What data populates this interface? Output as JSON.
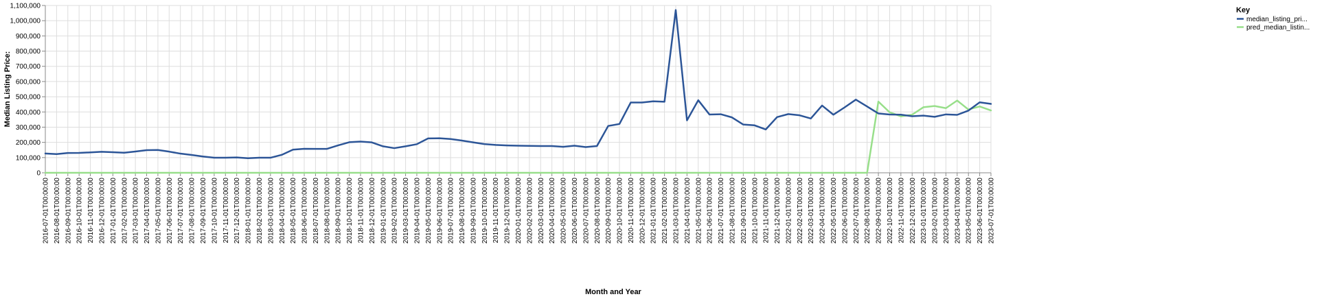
{
  "chart_data": {
    "type": "line",
    "xlabel": "Month and Year",
    "ylabel": "Median Listing Price:",
    "ylim": [
      0,
      1100000
    ],
    "yticks": [
      0,
      100000,
      200000,
      300000,
      400000,
      500000,
      600000,
      700000,
      800000,
      900000,
      1000000,
      1100000
    ],
    "ytick_labels": [
      "0",
      "100,000",
      "200,000",
      "300,000",
      "400,000",
      "500,000",
      "600,000",
      "700,000",
      "800,000",
      "900,000",
      "1,000,000",
      "1,100,000"
    ],
    "grid": true,
    "legend": {
      "title": "Key",
      "placement": "top-right"
    },
    "x": [
      "2016-07-01T00:00:00",
      "2016-08-01T00:00:00",
      "2016-09-01T00:00:00",
      "2016-10-01T00:00:00",
      "2016-11-01T00:00:00",
      "2016-12-01T00:00:00",
      "2017-01-01T00:00:00",
      "2017-02-01T00:00:00",
      "2017-03-01T00:00:00",
      "2017-04-01T00:00:00",
      "2017-05-01T00:00:00",
      "2017-06-01T00:00:00",
      "2017-07-01T00:00:00",
      "2017-08-01T00:00:00",
      "2017-09-01T00:00:00",
      "2017-10-01T00:00:00",
      "2017-11-01T00:00:00",
      "2017-12-01T00:00:00",
      "2018-01-01T00:00:00",
      "2018-02-01T00:00:00",
      "2018-03-01T00:00:00",
      "2018-04-01T00:00:00",
      "2018-05-01T00:00:00",
      "2018-06-01T00:00:00",
      "2018-07-01T00:00:00",
      "2018-08-01T00:00:00",
      "2018-09-01T00:00:00",
      "2018-10-01T00:00:00",
      "2018-11-01T00:00:00",
      "2018-12-01T00:00:00",
      "2019-01-01T00:00:00",
      "2019-02-01T00:00:00",
      "2019-03-01T00:00:00",
      "2019-04-01T00:00:00",
      "2019-05-01T00:00:00",
      "2019-06-01T00:00:00",
      "2019-07-01T00:00:00",
      "2019-08-01T00:00:00",
      "2019-09-01T00:00:00",
      "2019-10-01T00:00:00",
      "2019-11-01T00:00:00",
      "2019-12-01T00:00:00",
      "2020-01-01T00:00:00",
      "2020-02-01T00:00:00",
      "2020-03-01T00:00:00",
      "2020-04-01T00:00:00",
      "2020-05-01T00:00:00",
      "2020-06-01T00:00:00",
      "2020-07-01T00:00:00",
      "2020-08-01T00:00:00",
      "2020-09-01T00:00:00",
      "2020-10-01T00:00:00",
      "2020-11-01T00:00:00",
      "2020-12-01T00:00:00",
      "2021-01-01T00:00:00",
      "2021-02-01T00:00:00",
      "2021-03-01T00:00:00",
      "2021-04-01T00:00:00",
      "2021-05-01T00:00:00",
      "2021-06-01T00:00:00",
      "2021-07-01T00:00:00",
      "2021-08-01T00:00:00",
      "2021-09-01T00:00:00",
      "2021-10-01T00:00:00",
      "2021-11-01T00:00:00",
      "2021-12-01T00:00:00",
      "2022-01-01T00:00:00",
      "2022-02-01T00:00:00",
      "2022-03-01T00:00:00",
      "2022-04-01T00:00:00",
      "2022-05-01T00:00:00",
      "2022-06-01T00:00:00",
      "2022-07-01T00:00:00",
      "2022-08-01T00:00:00",
      "2022-09-01T00:00:00",
      "2022-10-01T00:00:00",
      "2022-11-01T00:00:00",
      "2022-12-01T00:00:00",
      "2023-01-01T00:00:00",
      "2023-02-01T00:00:00",
      "2023-03-01T00:00:00",
      "2023-04-01T00:00:00",
      "2023-05-01T00:00:00",
      "2023-06-01T00:00:00",
      "2023-07-01T00:00:00"
    ],
    "series": [
      {
        "name": "median_listing_pri...",
        "color": "#2c5597",
        "values": [
          127000,
          123000,
          130000,
          131000,
          134000,
          138000,
          135000,
          132000,
          140000,
          149000,
          150000,
          139000,
          126000,
          117000,
          107000,
          99000,
          99000,
          101000,
          96000,
          99000,
          99000,
          118000,
          152000,
          158000,
          157000,
          157000,
          180000,
          201000,
          205000,
          200000,
          174000,
          162000,
          174000,
          188000,
          226000,
          227000,
          222000,
          212000,
          200000,
          189000,
          183000,
          180000,
          178000,
          177000,
          176000,
          176000,
          171000,
          178000,
          169000,
          176000,
          308000,
          321000,
          462000,
          462000,
          470000,
          467000,
          1070000,
          345000,
          477000,
          383000,
          385000,
          364000,
          317000,
          312000,
          285000,
          366000,
          386000,
          378000,
          357000,
          442000,
          382000,
          430000,
          481000,
          436000,
          390000,
          383000,
          382000,
          372000,
          376000,
          368000,
          384000,
          381000,
          409000,
          463000,
          453000
        ]
      },
      {
        "name": "pred_median_listin...",
        "color": "#98df8a",
        "values": [
          0,
          0,
          0,
          0,
          0,
          0,
          0,
          0,
          0,
          0,
          0,
          0,
          0,
          0,
          0,
          0,
          0,
          0,
          0,
          0,
          0,
          0,
          0,
          0,
          0,
          0,
          0,
          0,
          0,
          0,
          0,
          0,
          0,
          0,
          0,
          0,
          0,
          0,
          0,
          0,
          0,
          0,
          0,
          0,
          0,
          0,
          0,
          0,
          0,
          0,
          0,
          0,
          0,
          0,
          0,
          0,
          0,
          0,
          0,
          0,
          0,
          0,
          0,
          0,
          0,
          0,
          0,
          0,
          0,
          0,
          0,
          0,
          0,
          0,
          468000,
          398000,
          371000,
          382000,
          431000,
          439000,
          425000,
          475000,
          416000,
          436000,
          410000
        ]
      }
    ]
  }
}
